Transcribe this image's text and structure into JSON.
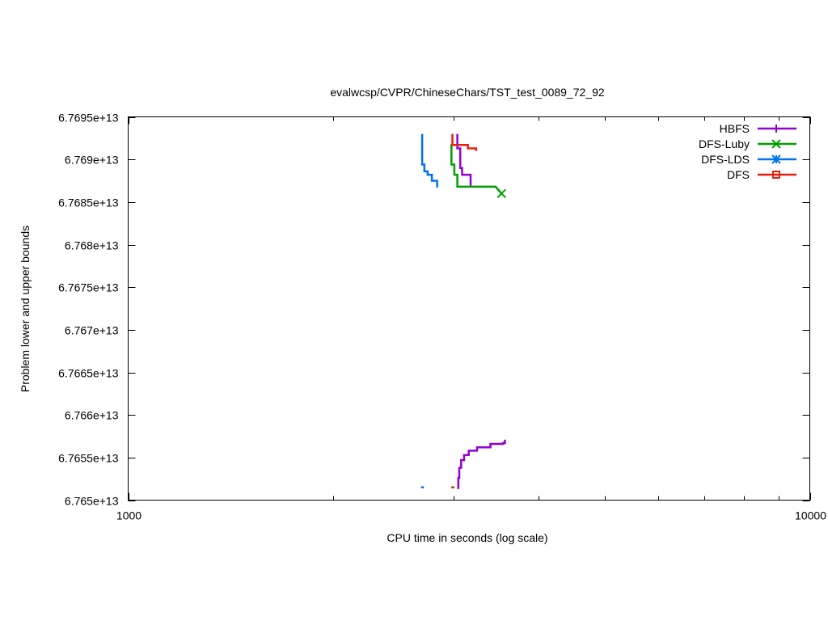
{
  "chart_data": {
    "type": "line",
    "title": "evalwcsp/CVPR/ChineseChars/TST_test_0089_72_92",
    "xlabel": "CPU time in seconds (log scale)",
    "ylabel": "Problem lower and upper bounds",
    "x_scale": "log",
    "xlim": [
      1000,
      10000
    ],
    "ylim": [
      67650000000000,
      67695000000000
    ],
    "x_ticks": [
      1000,
      10000
    ],
    "x_tick_labels": [
      "1000",
      "10000"
    ],
    "y_ticks": [
      67650000000000,
      67655000000000,
      67660000000000,
      67665000000000,
      67670000000000,
      67675000000000,
      67680000000000,
      67685000000000,
      67690000000000,
      67695000000000
    ],
    "y_tick_labels": [
      "6.765e+13",
      "6.7655e+13",
      "6.766e+13",
      "6.7665e+13",
      "6.767e+13",
      "6.7675e+13",
      "6.768e+13",
      "6.7685e+13",
      "6.769e+13",
      "6.7695e+13"
    ],
    "grid": false,
    "legend_position": "top-right",
    "series": [
      {
        "name": "HBFS",
        "color": "#9400d3",
        "marker": "plus",
        "upper": [
          [
            3040,
            67693000000000
          ],
          [
            3040,
            67691300000000
          ],
          [
            3070,
            67691300000000
          ],
          [
            3070,
            67689000000000
          ],
          [
            3090,
            67689000000000
          ],
          [
            3090,
            67688200000000
          ],
          [
            3180,
            67688200000000
          ],
          [
            3180,
            67686800000000
          ]
        ],
        "lower": [
          [
            3050,
            67651300000000
          ],
          [
            3050,
            67652600000000
          ],
          [
            3060,
            67652600000000
          ],
          [
            3060,
            67653800000000
          ],
          [
            3080,
            67653800000000
          ],
          [
            3080,
            67654700000000
          ],
          [
            3110,
            67654700000000
          ],
          [
            3110,
            67655300000000
          ],
          [
            3160,
            67655300000000
          ],
          [
            3160,
            67655800000000
          ],
          [
            3250,
            67655800000000
          ],
          [
            3250,
            67656200000000
          ],
          [
            3400,
            67656200000000
          ],
          [
            3400,
            67656600000000
          ],
          [
            3550,
            67656600000000
          ],
          [
            3550,
            67656700000000
          ],
          [
            3570,
            67656700000000
          ],
          [
            3570,
            67657100000000
          ]
        ]
      },
      {
        "name": "DFS-Luby",
        "color": "#009e00",
        "marker": "x",
        "upper": [
          [
            2980,
            67691800000000
          ],
          [
            2980,
            67689400000000
          ],
          [
            3010,
            67689400000000
          ],
          [
            3010,
            67688200000000
          ],
          [
            3040,
            67688200000000
          ],
          [
            3040,
            67686800000000
          ],
          [
            3460,
            67686800000000
          ],
          [
            3530,
            67686000000000
          ]
        ],
        "lower": [
          [
            2980,
            67651500000000
          ],
          [
            3010,
            67651500000000
          ]
        ]
      },
      {
        "name": "DFS-LDS",
        "color": "#0072f2",
        "marker": "star",
        "upper": [
          [
            2700,
            67693000000000
          ],
          [
            2700,
            67689400000000
          ],
          [
            2720,
            67689400000000
          ],
          [
            2720,
            67688600000000
          ],
          [
            2750,
            67688600000000
          ],
          [
            2750,
            67688200000000
          ],
          [
            2790,
            67688200000000
          ],
          [
            2790,
            67687500000000
          ],
          [
            2840,
            67687500000000
          ],
          [
            2840,
            67686700000000
          ]
        ],
        "lower": [
          [
            2690,
            67651500000000
          ],
          [
            2715,
            67651500000000
          ]
        ]
      },
      {
        "name": "DFS",
        "color": "#e51e10",
        "marker": "square",
        "upper": [
          [
            2990,
            67693000000000
          ],
          [
            2990,
            67691700000000
          ],
          [
            3150,
            67691700000000
          ],
          [
            3150,
            67691300000000
          ],
          [
            3240,
            67691300000000
          ],
          [
            3240,
            67691000000000
          ]
        ],
        "lower": [
          [
            2980,
            67651500000000
          ],
          [
            3000,
            67651500000000
          ]
        ]
      }
    ]
  }
}
